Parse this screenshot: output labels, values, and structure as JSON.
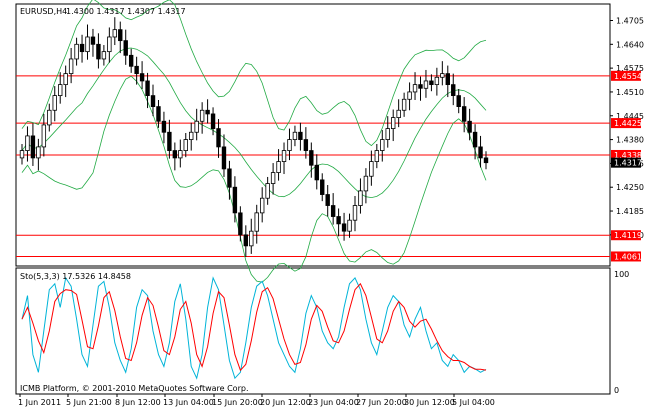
{
  "header": {
    "symbol_timeframe": "EURUSD,H4",
    "ohlc": "1.4300 1.4317 1.4307 1.4317"
  },
  "main_price_axis": {
    "range": [
      1.4035,
      1.475
    ],
    "ticks": [
      "1.4705",
      "1.4640",
      "1.4575",
      "1.4510",
      "1.4445",
      "1.4380",
      "1.4315",
      "1.4250",
      "1.4185",
      "1.4120"
    ],
    "tick_values": [
      1.4705,
      1.464,
      1.4575,
      1.451,
      1.4445,
      1.438,
      1.4315,
      1.425,
      1.4185,
      1.412
    ]
  },
  "levels": [
    {
      "value": 1.4554,
      "label": "1.4554"
    },
    {
      "value": 1.4425,
      "label": "1.4425"
    },
    {
      "value": 1.4338,
      "label": "1.4338"
    },
    {
      "value": 1.4119,
      "label": "1.4119"
    },
    {
      "value": 1.4061,
      "label": "1.4061"
    }
  ],
  "current_price": {
    "value": 1.4317,
    "label": "1.4317"
  },
  "stochastic": {
    "label": "Sto(5,3,3) 17.5326 14.8458",
    "axis_ticks": [
      "100",
      "0"
    ],
    "range": [
      0,
      100
    ]
  },
  "footer": {
    "copyright": "ICMB Platform, © 2001-2010 MetaQuotes Software Corp."
  },
  "time_axis": {
    "labels": [
      "1 Jun 2011",
      "5 Jun 21:00",
      "8 Jun 12:00",
      "13 Jun 04:00",
      "15 Jun 20:00",
      "20 Jun 12:00",
      "23 Jun 04:00",
      "27 Jun 20:00",
      "30 Jun 12:00",
      "5 Jul 04:00"
    ]
  },
  "colors": {
    "level_line": "#ff0000",
    "level_label_bg": "#ff0000",
    "bollinger": "#22aa44",
    "candle": "#000000",
    "stoch_main": "#00b4d8",
    "stoch_signal": "#ff0000",
    "price_label_bg": "#000000"
  },
  "chart_data": {
    "type": "candlestick",
    "ylim": [
      1.4035,
      1.475
    ],
    "close": [
      1.435,
      1.439,
      1.433,
      1.436,
      1.442,
      1.446,
      1.45,
      1.453,
      1.456,
      1.46,
      1.464,
      1.462,
      1.466,
      1.464,
      1.46,
      1.462,
      1.466,
      1.468,
      1.465,
      1.461,
      1.458,
      1.456,
      1.454,
      1.45,
      1.447,
      1.443,
      1.44,
      1.435,
      1.433,
      1.435,
      1.438,
      1.44,
      1.443,
      1.446,
      1.445,
      1.441,
      1.436,
      1.43,
      1.425,
      1.418,
      1.412,
      1.409,
      1.413,
      1.418,
      1.422,
      1.426,
      1.429,
      1.432,
      1.435,
      1.438,
      1.44,
      1.438,
      1.435,
      1.431,
      1.427,
      1.423,
      1.42,
      1.417,
      1.415,
      1.413,
      1.416,
      1.42,
      1.424,
      1.428,
      1.432,
      1.435,
      1.438,
      1.441,
      1.444,
      1.446,
      1.449,
      1.451,
      1.453,
      1.452,
      1.454,
      1.453,
      1.455,
      1.456,
      1.453,
      1.45,
      1.447,
      1.443,
      1.44,
      1.436,
      1.433,
      1.4317
    ],
    "stochastic_main": [
      60,
      80,
      30,
      15,
      50,
      85,
      90,
      70,
      95,
      88,
      60,
      30,
      20,
      55,
      88,
      92,
      70,
      40,
      25,
      15,
      35,
      70,
      85,
      80,
      50,
      30,
      20,
      40,
      75,
      90,
      60,
      20,
      10,
      30,
      70,
      95,
      85,
      55,
      25,
      10,
      15,
      40,
      70,
      88,
      92,
      80,
      60,
      40,
      30,
      20,
      15,
      35,
      65,
      80,
      70,
      50,
      40,
      35,
      45,
      70,
      90,
      95,
      85,
      60,
      40,
      30,
      50,
      70,
      80,
      75,
      55,
      45,
      60,
      70,
      50,
      35,
      40,
      25,
      20,
      30,
      25,
      15,
      20,
      18,
      15,
      17.5
    ]
  }
}
